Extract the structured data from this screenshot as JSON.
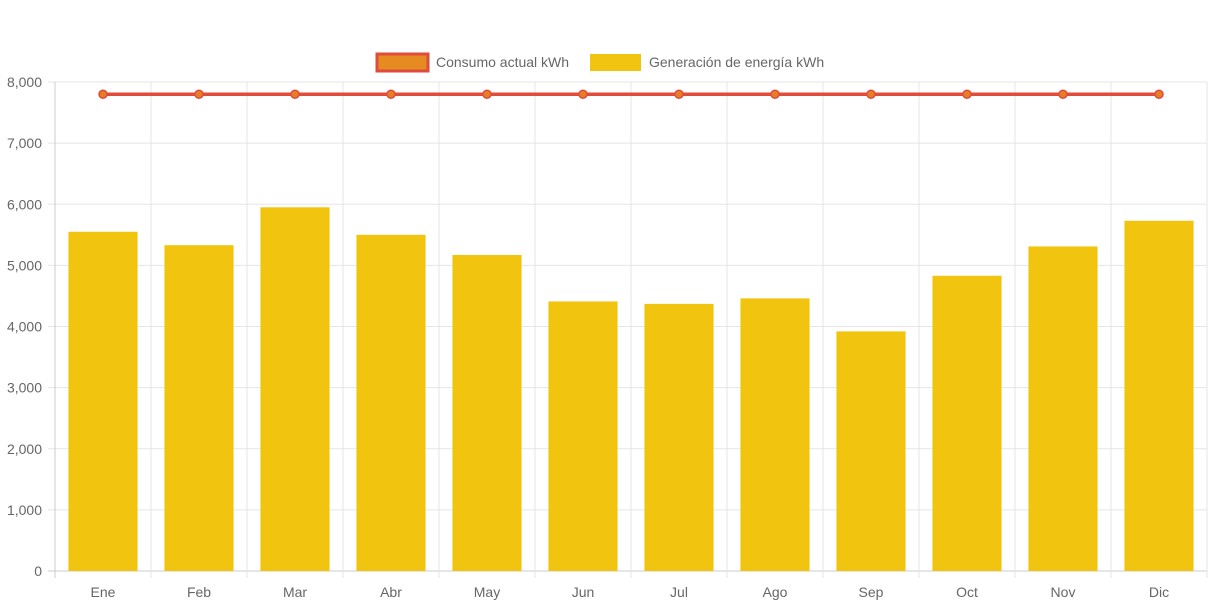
{
  "chart_data": {
    "type": "bar",
    "categories": [
      "Ene",
      "Feb",
      "Mar",
      "Abr",
      "May",
      "Jun",
      "Jul",
      "Ago",
      "Sep",
      "Oct",
      "Nov",
      "Dic"
    ],
    "series": [
      {
        "name": "Consumo actual kWh",
        "type": "line",
        "values": [
          7800,
          7800,
          7800,
          7800,
          7800,
          7800,
          7800,
          7800,
          7800,
          7800,
          7800,
          7800
        ],
        "color": "#e04c3c",
        "fill_color": "#e68a22",
        "point_color": "#e67e22"
      },
      {
        "name": "Generación de energía kWh",
        "type": "bar",
        "values": [
          5550,
          5330,
          5950,
          5500,
          5170,
          4410,
          4370,
          4460,
          3920,
          4830,
          5310,
          5730
        ],
        "color": "#f1c40f"
      }
    ],
    "ylim": [
      0,
      8000
    ],
    "yticks": [
      0,
      1000,
      2000,
      3000,
      4000,
      5000,
      6000,
      7000,
      8000
    ],
    "ytick_labels": [
      "0",
      "1,000",
      "2,000",
      "3,000",
      "4,000",
      "5,000",
      "6,000",
      "7,000",
      "8,000"
    ],
    "grid": true,
    "legend_position": "top"
  }
}
